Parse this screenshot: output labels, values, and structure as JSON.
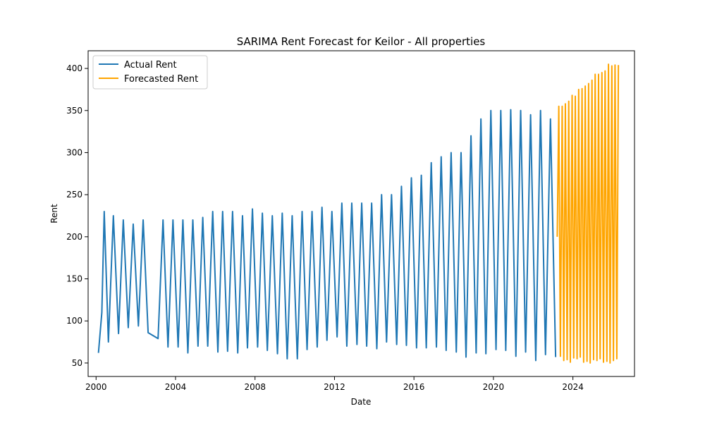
{
  "chart_data": {
    "type": "line",
    "title": "SARIMA Rent Forecast for Keilor - All properties",
    "xlabel": "Date",
    "ylabel": "Rent",
    "xlim": [
      1999.6,
      2027.1
    ],
    "ylim": [
      34,
      421
    ],
    "x_ticks": [
      2000,
      2004,
      2008,
      2012,
      2016,
      2020,
      2024
    ],
    "x_tick_labels": [
      "2000",
      "2004",
      "2008",
      "2012",
      "2016",
      "2020",
      "2024"
    ],
    "y_ticks": [
      50,
      100,
      150,
      200,
      250,
      300,
      350,
      400
    ],
    "y_tick_labels": [
      "50",
      "100",
      "150",
      "200",
      "250",
      "300",
      "350",
      "400"
    ],
    "grid": false,
    "legend_position": "top-left",
    "series": [
      {
        "name": "Actual Rent",
        "color": "#1f77b4",
        "x": [
          2000.12,
          2000.29,
          2000.41,
          2000.62,
          2000.87,
          2001.13,
          2001.37,
          2001.62,
          2001.87,
          2002.13,
          2002.37,
          2002.62,
          2003.12,
          2003.37,
          2003.62,
          2003.87,
          2004.13,
          2004.37,
          2004.62,
          2004.87,
          2005.13,
          2005.37,
          2005.62,
          2005.87,
          2006.13,
          2006.37,
          2006.62,
          2006.87,
          2007.13,
          2007.37,
          2007.62,
          2007.87,
          2008.13,
          2008.37,
          2008.62,
          2008.87,
          2009.13,
          2009.37,
          2009.62,
          2009.87,
          2010.13,
          2010.37,
          2010.62,
          2010.87,
          2011.13,
          2011.37,
          2011.62,
          2011.87,
          2012.13,
          2012.37,
          2012.62,
          2012.87,
          2013.13,
          2013.37,
          2013.62,
          2013.87,
          2014.13,
          2014.37,
          2014.62,
          2014.87,
          2015.13,
          2015.37,
          2015.62,
          2015.87,
          2016.13,
          2016.37,
          2016.62,
          2016.87,
          2017.13,
          2017.37,
          2017.62,
          2017.87,
          2018.13,
          2018.37,
          2018.62,
          2018.87,
          2019.13,
          2019.37,
          2019.62,
          2019.87,
          2020.13,
          2020.37,
          2020.62,
          2020.87,
          2021.13,
          2021.37,
          2021.62,
          2021.87,
          2022.13,
          2022.37,
          2022.62,
          2022.87,
          2023.13
        ],
        "y": [
          62,
          110,
          230,
          75,
          225,
          85,
          220,
          92,
          215,
          94,
          220,
          86,
          79,
          220,
          69,
          220,
          69,
          220,
          62,
          220,
          70,
          223,
          70,
          230,
          63,
          230,
          64,
          230,
          62,
          225,
          68,
          233,
          69,
          228,
          65,
          225,
          61,
          228,
          55,
          225,
          55,
          230,
          66,
          230,
          69,
          235,
          77,
          230,
          81,
          240,
          70,
          240,
          72,
          240,
          70,
          240,
          67,
          250,
          75,
          250,
          72,
          260,
          71,
          270,
          68,
          273,
          68,
          288,
          69,
          295,
          65,
          300,
          63,
          300,
          57,
          320,
          62,
          340,
          61,
          350,
          66,
          350,
          65,
          351,
          58,
          350,
          63,
          345,
          53,
          350,
          60,
          340,
          57
        ]
      },
      {
        "name": "Forecasted Rent",
        "color": "#ffa500",
        "x": [
          2023.21,
          2023.29,
          2023.37,
          2023.46,
          2023.54,
          2023.62,
          2023.71,
          2023.79,
          2023.87,
          2023.96,
          2024.04,
          2024.12,
          2024.21,
          2024.29,
          2024.37,
          2024.46,
          2024.54,
          2024.62,
          2024.71,
          2024.79,
          2024.87,
          2024.96,
          2025.04,
          2025.12,
          2025.21,
          2025.29,
          2025.37,
          2025.46,
          2025.54,
          2025.62,
          2025.71,
          2025.79,
          2025.87,
          2025.96,
          2026.04,
          2026.12,
          2026.21,
          2026.29
        ],
        "y": [
          200,
          355,
          58,
          355,
          53,
          358,
          54,
          361,
          51,
          368,
          56,
          367,
          55,
          375,
          57,
          376,
          51,
          379,
          52,
          382,
          50,
          386,
          54,
          393,
          53,
          393,
          55,
          395,
          51,
          397,
          52,
          405,
          50,
          403,
          53,
          404,
          55,
          404
        ]
      }
    ]
  }
}
